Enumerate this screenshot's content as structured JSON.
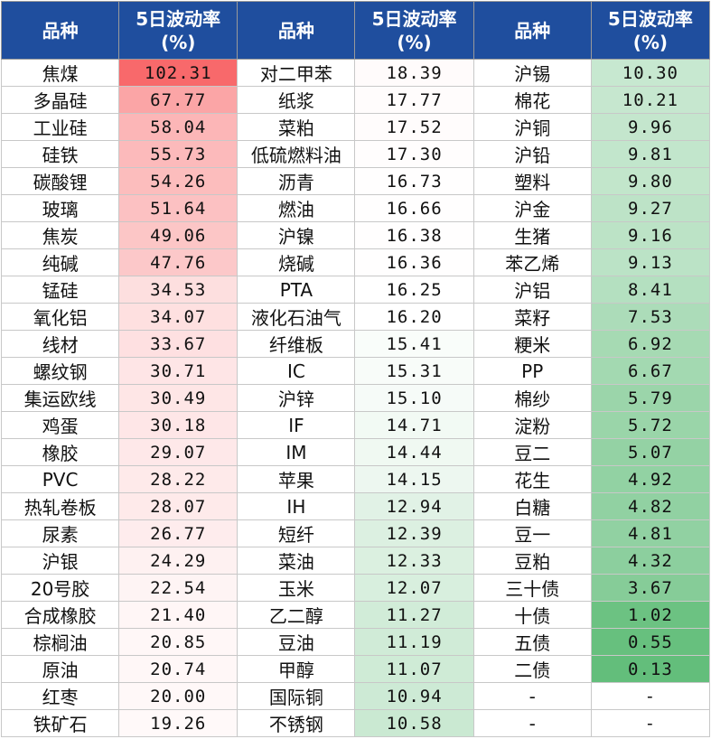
{
  "header": {
    "col_name": "品种",
    "col_vol_line1": "5日波动率",
    "col_vol_line2": "(%)"
  },
  "colors": {
    "header_bg": "#1f4e9e",
    "high": "#f8696b",
    "mid": "#ffffff",
    "low": "#63be7b"
  },
  "scale": {
    "max": 102.31,
    "min": 0.13,
    "mid_value": 16.0
  },
  "groups": [
    {
      "rows": [
        {
          "name": "焦煤",
          "value": "102.31"
        },
        {
          "name": "多晶硅",
          "value": "67.77"
        },
        {
          "name": "工业硅",
          "value": "58.04"
        },
        {
          "name": "硅铁",
          "value": "55.73"
        },
        {
          "name": "碳酸锂",
          "value": "54.26"
        },
        {
          "name": "玻璃",
          "value": "51.64"
        },
        {
          "name": "焦炭",
          "value": "49.06"
        },
        {
          "name": "纯碱",
          "value": "47.76"
        },
        {
          "name": "锰硅",
          "value": "34.53"
        },
        {
          "name": "氧化铝",
          "value": "34.07"
        },
        {
          "name": "线材",
          "value": "33.67"
        },
        {
          "name": "螺纹钢",
          "value": "30.71"
        },
        {
          "name": "集运欧线",
          "value": "30.49"
        },
        {
          "name": "鸡蛋",
          "value": "30.18"
        },
        {
          "name": "橡胶",
          "value": "29.07"
        },
        {
          "name": "PVC",
          "value": "28.22"
        },
        {
          "name": "热轧卷板",
          "value": "28.07"
        },
        {
          "name": "尿素",
          "value": "26.77"
        },
        {
          "name": "沪银",
          "value": "24.29"
        },
        {
          "name": "20号胶",
          "value": "22.54"
        },
        {
          "name": "合成橡胶",
          "value": "21.40"
        },
        {
          "name": "棕榈油",
          "value": "20.85"
        },
        {
          "name": "原油",
          "value": "20.74"
        },
        {
          "name": "红枣",
          "value": "20.00"
        },
        {
          "name": "铁矿石",
          "value": "19.26"
        }
      ]
    },
    {
      "rows": [
        {
          "name": "对二甲苯",
          "value": "18.39"
        },
        {
          "name": "纸浆",
          "value": "17.77"
        },
        {
          "name": "菜粕",
          "value": "17.52"
        },
        {
          "name": "低硫燃料油",
          "value": "17.30"
        },
        {
          "name": "沥青",
          "value": "16.73"
        },
        {
          "name": "燃油",
          "value": "16.66"
        },
        {
          "name": "沪镍",
          "value": "16.38"
        },
        {
          "name": "烧碱",
          "value": "16.36"
        },
        {
          "name": "PTA",
          "value": "16.25"
        },
        {
          "name": "液化石油气",
          "value": "16.20"
        },
        {
          "name": "纤维板",
          "value": "15.41"
        },
        {
          "name": "IC",
          "value": "15.31"
        },
        {
          "name": "沪锌",
          "value": "15.10"
        },
        {
          "name": "IF",
          "value": "14.71"
        },
        {
          "name": "IM",
          "value": "14.44"
        },
        {
          "name": "苹果",
          "value": "14.15"
        },
        {
          "name": "IH",
          "value": "12.94"
        },
        {
          "name": "短纤",
          "value": "12.39"
        },
        {
          "name": "菜油",
          "value": "12.33"
        },
        {
          "name": "玉米",
          "value": "12.07"
        },
        {
          "name": "乙二醇",
          "value": "11.27"
        },
        {
          "name": "豆油",
          "value": "11.19"
        },
        {
          "name": "甲醇",
          "value": "11.07"
        },
        {
          "name": "国际铜",
          "value": "10.94"
        },
        {
          "name": "不锈钢",
          "value": "10.58"
        }
      ]
    },
    {
      "rows": [
        {
          "name": "沪锡",
          "value": "10.30"
        },
        {
          "name": "棉花",
          "value": "10.21"
        },
        {
          "name": "沪铜",
          "value": "9.96"
        },
        {
          "name": "沪铅",
          "value": "9.81"
        },
        {
          "name": "塑料",
          "value": "9.80"
        },
        {
          "name": "沪金",
          "value": "9.27"
        },
        {
          "name": "生猪",
          "value": "9.16"
        },
        {
          "name": "苯乙烯",
          "value": "9.13"
        },
        {
          "name": "沪铝",
          "value": "8.41"
        },
        {
          "name": "菜籽",
          "value": "7.53"
        },
        {
          "name": "粳米",
          "value": "6.92"
        },
        {
          "name": "PP",
          "value": "6.67"
        },
        {
          "name": "棉纱",
          "value": "5.79"
        },
        {
          "name": "淀粉",
          "value": "5.72"
        },
        {
          "name": "豆二",
          "value": "5.07"
        },
        {
          "name": "花生",
          "value": "4.92"
        },
        {
          "name": "白糖",
          "value": "4.82"
        },
        {
          "name": "豆一",
          "value": "4.81"
        },
        {
          "name": "豆粕",
          "value": "4.32"
        },
        {
          "name": "三十债",
          "value": "3.67"
        },
        {
          "name": "十债",
          "value": "1.02"
        },
        {
          "name": "五债",
          "value": "0.55"
        },
        {
          "name": "二债",
          "value": "0.13"
        },
        {
          "name": "-",
          "value": "-"
        },
        {
          "name": "-",
          "value": "-"
        }
      ]
    }
  ]
}
